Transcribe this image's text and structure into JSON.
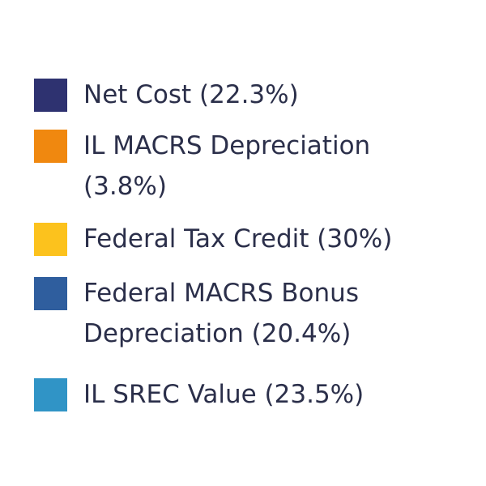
{
  "legend": {
    "items": [
      {
        "label": "Net Cost (22.3%)",
        "color": "#2e3270"
      },
      {
        "label": "IL MACRS Depreciation (3.8%)",
        "color": "#f0880f"
      },
      {
        "label": "Federal Tax Credit (30%)",
        "color": "#fcc21d"
      },
      {
        "label": "Federal MACRS Bonus Depreciation (20.4%)",
        "color": "#2f5e9e"
      },
      {
        "label": "IL SREC Value (23.5%)",
        "color": "#3094c6"
      }
    ]
  }
}
